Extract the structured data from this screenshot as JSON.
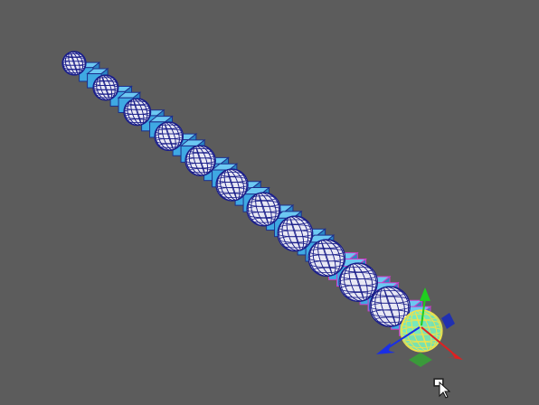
{
  "viewport": {
    "background": "#5c5c5c",
    "sphere_count": 12,
    "cube_count": 24,
    "selected_sphere_index": 11,
    "colors": {
      "sphere_fill": "#e8e8f4",
      "sphere_wire": "#1b1f8a",
      "cube_fill": "#3fa9e3",
      "cube_top": "#6cc8f2",
      "cube_edge": "#1d2f8c",
      "selection_edge": "#d03cc8",
      "selected_fill": "#7ef0b8",
      "selected_wire": "#f0e24a",
      "axis_x": "#e02020",
      "axis_y": "#1fcf1f",
      "axis_z": "#1a2fe6",
      "plane_xz": "#3a9a3a",
      "plane_xy": "#2030b0"
    }
  },
  "manipulator": {
    "type": "move",
    "icon": "move-manipulator-icon"
  },
  "cursor": {
    "icon": "selection-cursor-icon"
  }
}
